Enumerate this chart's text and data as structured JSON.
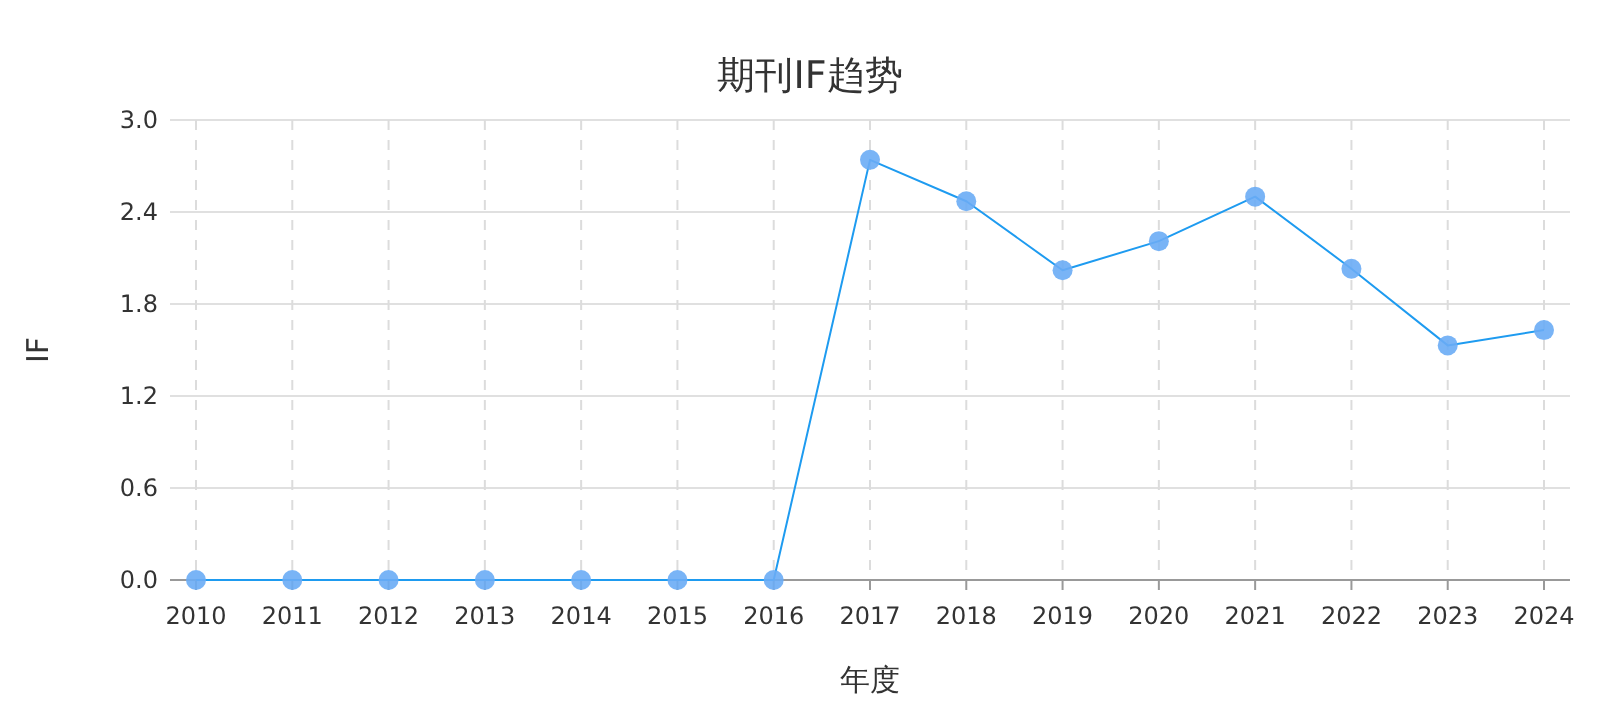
{
  "chart_data": {
    "type": "line",
    "title": "期刊IF趋势",
    "xlabel": "年度",
    "ylabel": "IF",
    "categories": [
      "2010",
      "2011",
      "2012",
      "2013",
      "2014",
      "2015",
      "2016",
      "2017",
      "2018",
      "2019",
      "2020",
      "2021",
      "2022",
      "2023",
      "2024"
    ],
    "series": [
      {
        "color": "#1e9bf0",
        "values": [
          0,
          0,
          0,
          0,
          0,
          0,
          0,
          2.74,
          2.47,
          2.02,
          2.21,
          2.5,
          2.03,
          1.53,
          1.63
        ]
      }
    ],
    "ylim": [
      0,
      3.0
    ],
    "yticks": [
      {
        "value": 0,
        "label": "0.0"
      },
      {
        "value": 0.6,
        "label": "0.6"
      },
      {
        "value": 1.2,
        "label": "1.2"
      },
      {
        "value": 1.8,
        "label": "1.8"
      },
      {
        "value": 2.4,
        "label": "2.4"
      },
      {
        "value": 3.0,
        "label": "3.0"
      }
    ],
    "grid": true,
    "marker": "circle",
    "line_style": "solid"
  }
}
